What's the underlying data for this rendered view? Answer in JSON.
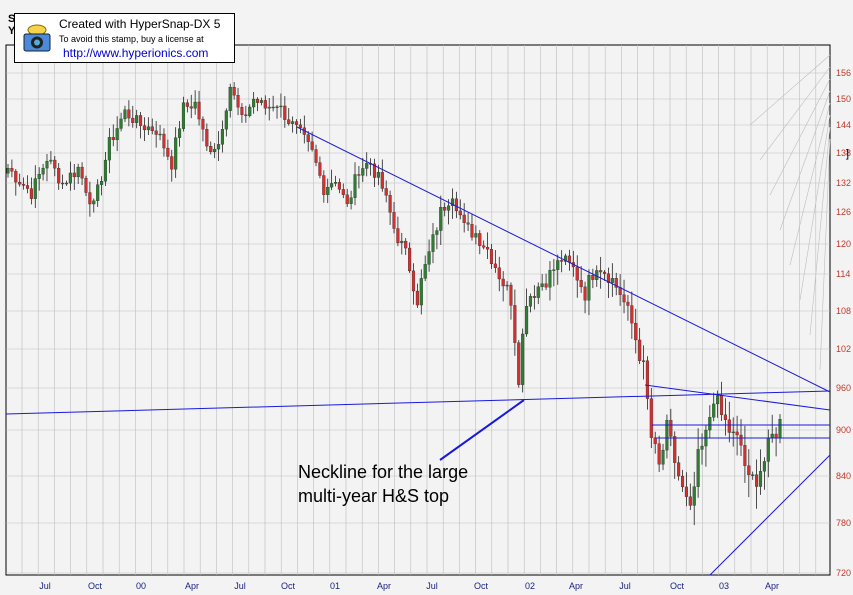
{
  "stamp": {
    "line1": "Created with HyperSnap-DX 5",
    "line2": "To avoid this stamp, buy a license at",
    "line3": "http://www.hyperionics.com"
  },
  "corner_text": "S\nY",
  "annotation": {
    "line1": "Neckline for the large",
    "line2": "multi-year H&S top"
  },
  "colors": {
    "background": "#f3f3f3",
    "grid": "#bdbdbd",
    "up_candle": "#2e7d32",
    "down_candle": "#d32f2f",
    "trendline": "#1a1adb",
    "y_tick": "#c0392b",
    "x_tick": "#1a237e"
  },
  "chart_data": {
    "type": "candlestick",
    "title": "",
    "xlabel": "",
    "ylabel": "",
    "y_tick_labels": [
      "156",
      "150",
      "144",
      "138",
      "132",
      "126",
      "120",
      "114",
      "108",
      "102",
      "960",
      "900",
      "840",
      "780",
      "720"
    ],
    "x_tick_labels": [
      "Jul",
      "Oct",
      "00",
      "Apr",
      "Jul",
      "Oct",
      "01",
      "Apr",
      "Jul",
      "Oct",
      "02",
      "Apr",
      "Jul",
      "Oct",
      "03",
      "Apr"
    ],
    "ylim": [
      690,
      1620
    ],
    "grid": true,
    "price_path": [
      [
        0,
        1350
      ],
      [
        6,
        1300
      ],
      [
        10,
        1370
      ],
      [
        14,
        1320
      ],
      [
        18,
        1350
      ],
      [
        22,
        1270
      ],
      [
        26,
        1400
      ],
      [
        30,
        1470
      ],
      [
        34,
        1440
      ],
      [
        38,
        1430
      ],
      [
        42,
        1360
      ],
      [
        45,
        1480
      ],
      [
        48,
        1490
      ],
      [
        51,
        1390
      ],
      [
        54,
        1400
      ],
      [
        57,
        1530
      ],
      [
        60,
        1450
      ],
      [
        63,
        1500
      ],
      [
        66,
        1480
      ],
      [
        69,
        1490
      ],
      [
        72,
        1450
      ],
      [
        75,
        1420
      ],
      [
        78,
        1380
      ],
      [
        81,
        1310
      ],
      [
        84,
        1330
      ],
      [
        87,
        1270
      ],
      [
        90,
        1350
      ],
      [
        93,
        1360
      ],
      [
        96,
        1310
      ],
      [
        99,
        1230
      ],
      [
        102,
        1180
      ],
      [
        105,
        1100
      ],
      [
        108,
        1180
      ],
      [
        111,
        1260
      ],
      [
        114,
        1300
      ],
      [
        117,
        1230
      ],
      [
        120,
        1220
      ],
      [
        123,
        1190
      ],
      [
        126,
        1140
      ],
      [
        129,
        1100
      ],
      [
        131,
        980
      ],
      [
        133,
        1100
      ],
      [
        136,
        1120
      ],
      [
        139,
        1140
      ],
      [
        142,
        1170
      ],
      [
        145,
        1150
      ],
      [
        148,
        1110
      ],
      [
        151,
        1160
      ],
      [
        154,
        1140
      ],
      [
        157,
        1110
      ],
      [
        160,
        1060
      ],
      [
        163,
        990
      ],
      [
        165,
        890
      ],
      [
        167,
        850
      ],
      [
        169,
        900
      ],
      [
        171,
        860
      ],
      [
        173,
        820
      ],
      [
        175,
        790
      ],
      [
        177,
        860
      ],
      [
        179,
        890
      ],
      [
        181,
        950
      ],
      [
        183,
        920
      ],
      [
        186,
        890
      ],
      [
        188,
        880
      ],
      [
        190,
        830
      ],
      [
        192,
        840
      ],
      [
        194,
        860
      ],
      [
        196,
        890
      ],
      [
        198,
        910
      ]
    ],
    "annotations": [
      "Neckline for the large multi-year H&S top"
    ]
  }
}
